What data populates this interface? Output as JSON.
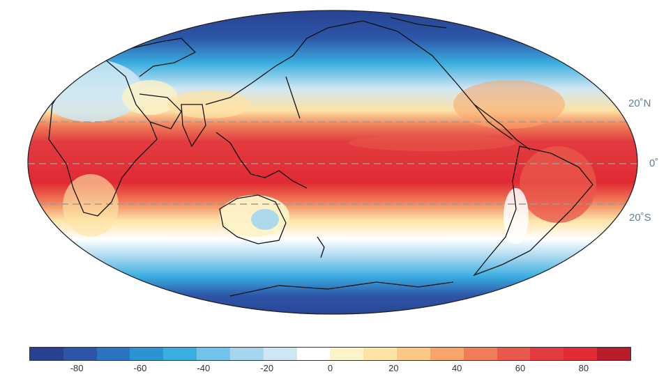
{
  "map": {
    "projection": "Mollweide",
    "field": "global map, diverging scale from -80 to 80",
    "latitude_labels": [
      {
        "key": "north",
        "text": "20˚N"
      },
      {
        "key": "equator",
        "text": "0˚"
      },
      {
        "key": "south",
        "text": "20˚S"
      }
    ],
    "colors": {
      "latitude_label": "#5e7f97",
      "gridline": "#9a9a9a",
      "coastline": "#111111"
    }
  },
  "colorbar": {
    "min": -95,
    "max": 95,
    "step": 10,
    "ticks": [
      "-80",
      "-60",
      "-40",
      "-20",
      "0",
      "20",
      "40",
      "60",
      "80"
    ],
    "tick_values": [
      -80,
      -60,
      -40,
      -20,
      0,
      20,
      40,
      60,
      80
    ],
    "colors": [
      "#27408f",
      "#2d56a8",
      "#2a73bf",
      "#2a93d2",
      "#3aaee0",
      "#72c3e9",
      "#a5d6ee",
      "#cfe7f3",
      "#ffffff",
      "#fdf3c8",
      "#fde3a6",
      "#fbc785",
      "#f7a56a",
      "#f07c58",
      "#e8584b",
      "#e23b40",
      "#e02a34",
      "#b91d2b"
    ]
  }
}
